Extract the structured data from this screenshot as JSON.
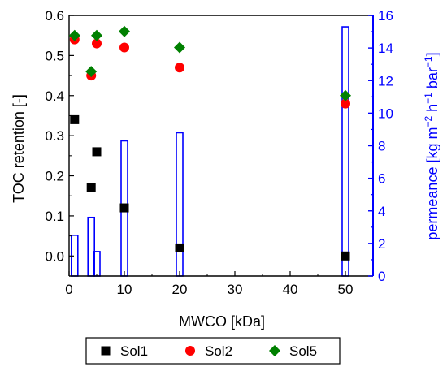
{
  "chart_data": {
    "type": "scatter",
    "title": "",
    "xlabel": "MWCO [kDa]",
    "ylabel": "TOC retention [-]",
    "y2label_parts": [
      "permeance [kg m",
      "−2",
      " h",
      "−1",
      " bar",
      "−1",
      "]"
    ],
    "xlim": [
      0,
      55
    ],
    "ylim": [
      -0.05,
      0.6
    ],
    "y2lim": [
      0,
      16
    ],
    "xticks": [
      0,
      10,
      20,
      30,
      40,
      50
    ],
    "xtick_labels": [
      "0",
      "10",
      "20",
      "30",
      "40",
      "50"
    ],
    "yticks": [
      0.0,
      0.1,
      0.2,
      0.3,
      0.4,
      0.5,
      0.6
    ],
    "ytick_labels": [
      "0.0",
      "0.1",
      "0.2",
      "0.3",
      "0.4",
      "0.5",
      "0.6"
    ],
    "y2ticks": [
      0,
      2,
      4,
      6,
      8,
      10,
      12,
      14,
      16
    ],
    "y2tick_labels": [
      "0",
      "2",
      "4",
      "6",
      "8",
      "10",
      "12",
      "14",
      "16"
    ],
    "legend_position": "bottom",
    "grid": false,
    "colors": {
      "Sol1": "#000000",
      "Sol2": "#ff0000",
      "Sol5": "#008000",
      "permeance_bars": "#0000ff",
      "right_axis": "#0000ff"
    },
    "series": [
      {
        "name": "Sol1",
        "marker": "square",
        "x": [
          1,
          4,
          5,
          10,
          20,
          50
        ],
        "y": [
          0.34,
          0.17,
          0.26,
          0.12,
          0.02,
          0.0
        ]
      },
      {
        "name": "Sol2",
        "marker": "circle",
        "x": [
          1,
          4,
          5,
          10,
          20,
          50
        ],
        "y": [
          0.54,
          0.45,
          0.53,
          0.52,
          0.47,
          0.38
        ]
      },
      {
        "name": "Sol5",
        "marker": "diamond",
        "x": [
          1,
          4,
          5,
          10,
          20,
          50
        ],
        "y": [
          0.55,
          0.46,
          0.55,
          0.56,
          0.52,
          0.4
        ]
      }
    ],
    "bars": {
      "axis": "right",
      "x": [
        1,
        4,
        5,
        10,
        20,
        50
      ],
      "values": [
        2.5,
        3.6,
        1.5,
        8.3,
        8.8,
        15.3
      ]
    }
  }
}
